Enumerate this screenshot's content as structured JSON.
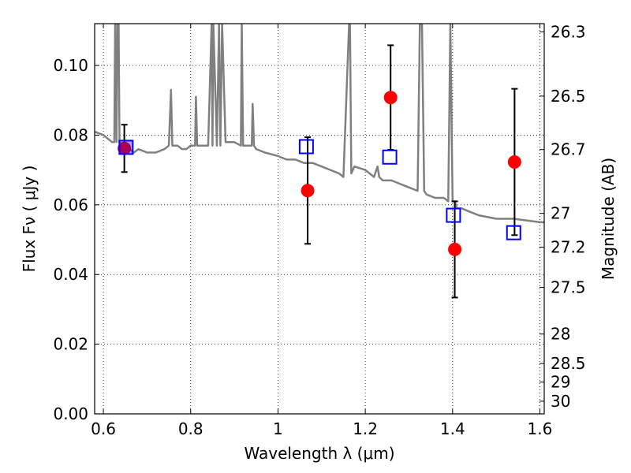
{
  "chart_data": {
    "type": "scatter",
    "xlabel": "Wavelength  λ (μm)",
    "ylabel": "Flux  Fν  ( μJy )",
    "y2label": "Magnitude (AB)",
    "xlim": [
      0.58,
      1.61
    ],
    "ylim": [
      0.0,
      0.112
    ],
    "grid": true,
    "x_ticks": [
      {
        "value": 0.6,
        "label": "0.6"
      },
      {
        "value": 0.8,
        "label": "0.8"
      },
      {
        "value": 1.0,
        "label": "1"
      },
      {
        "value": 1.2,
        "label": "1.2"
      },
      {
        "value": 1.4,
        "label": "1.4"
      },
      {
        "value": 1.6,
        "label": "1.6"
      }
    ],
    "y_ticks": [
      {
        "value": 0.0,
        "label": "0.00"
      },
      {
        "value": 0.02,
        "label": "0.02"
      },
      {
        "value": 0.04,
        "label": "0.04"
      },
      {
        "value": 0.06,
        "label": "0.06"
      },
      {
        "value": 0.08,
        "label": "0.08"
      },
      {
        "value": 0.1,
        "label": "0.10"
      }
    ],
    "y2_ticks": [
      {
        "value": 26.3,
        "label": "26.3"
      },
      {
        "value": 26.5,
        "label": "26.5"
      },
      {
        "value": 26.7,
        "label": "26.7"
      },
      {
        "value": 27.0,
        "label": "27"
      },
      {
        "value": 27.2,
        "label": "27.2"
      },
      {
        "value": 27.5,
        "label": "27.5"
      },
      {
        "value": 28.0,
        "label": "28"
      },
      {
        "value": 28.5,
        "label": "28.5"
      },
      {
        "value": 29.0,
        "label": "29"
      },
      {
        "value": 30.0,
        "label": "30"
      }
    ],
    "series": [
      {
        "kind": "spectrum",
        "color": "#808080",
        "x": [
          0.58,
          0.6,
          0.61,
          0.62,
          0.625,
          0.627,
          0.63,
          0.632,
          0.635,
          0.637,
          0.64,
          0.65,
          0.66,
          0.67,
          0.68,
          0.7,
          0.72,
          0.74,
          0.75,
          0.755,
          0.758,
          0.762,
          0.77,
          0.78,
          0.79,
          0.8,
          0.81,
          0.812,
          0.815,
          0.82,
          0.84,
          0.848,
          0.85,
          0.852,
          0.86,
          0.865,
          0.868,
          0.872,
          0.88,
          0.9,
          0.915,
          0.917,
          0.92,
          0.925,
          0.94,
          0.942,
          0.945,
          0.95,
          0.97,
          1.0,
          1.02,
          1.04,
          1.06,
          1.08,
          1.1,
          1.12,
          1.14,
          1.15,
          1.163,
          1.165,
          1.168,
          1.175,
          1.2,
          1.22,
          1.228,
          1.232,
          1.24,
          1.26,
          1.3,
          1.32,
          1.325,
          1.33,
          1.335,
          1.34,
          1.36,
          1.38,
          1.39,
          1.395,
          1.4,
          1.405,
          1.41,
          1.42,
          1.44,
          1.46,
          1.5,
          1.54,
          1.6,
          1.61
        ],
        "y": [
          0.081,
          0.08,
          0.079,
          0.078,
          0.078,
          0.112,
          0.078,
          0.112,
          0.112,
          0.078,
          0.077,
          0.076,
          0.076,
          0.075,
          0.076,
          0.075,
          0.075,
          0.076,
          0.077,
          0.093,
          0.077,
          0.077,
          0.077,
          0.076,
          0.076,
          0.077,
          0.077,
          0.091,
          0.077,
          0.077,
          0.077,
          0.112,
          0.077,
          0.112,
          0.077,
          0.112,
          0.077,
          0.112,
          0.078,
          0.078,
          0.077,
          0.112,
          0.077,
          0.077,
          0.077,
          0.089,
          0.077,
          0.076,
          0.075,
          0.074,
          0.073,
          0.073,
          0.072,
          0.072,
          0.071,
          0.07,
          0.069,
          0.068,
          0.112,
          0.112,
          0.069,
          0.071,
          0.07,
          0.068,
          0.071,
          0.068,
          0.067,
          0.067,
          0.065,
          0.064,
          0.112,
          0.112,
          0.064,
          0.063,
          0.062,
          0.062,
          0.061,
          0.112,
          0.061,
          0.061,
          0.059,
          0.059,
          0.058,
          0.057,
          0.056,
          0.056,
          0.055,
          0.055
        ]
      },
      {
        "kind": "error-bar-points",
        "marker": "circle",
        "color": "#ff0000",
        "x": [
          0.648,
          1.068,
          1.258,
          1.405,
          1.542
        ],
        "y": [
          0.0762,
          0.0641,
          0.0908,
          0.0472,
          0.0723
        ],
        "err": [
          0.0068,
          0.0153,
          0.015,
          0.0138,
          0.021
        ]
      },
      {
        "kind": "model-points",
        "marker": "square",
        "color": "#0000ff",
        "x": [
          0.652,
          1.065,
          1.256,
          1.402,
          1.54
        ],
        "y": [
          0.0765,
          0.0767,
          0.0737,
          0.057,
          0.052
        ]
      }
    ]
  }
}
